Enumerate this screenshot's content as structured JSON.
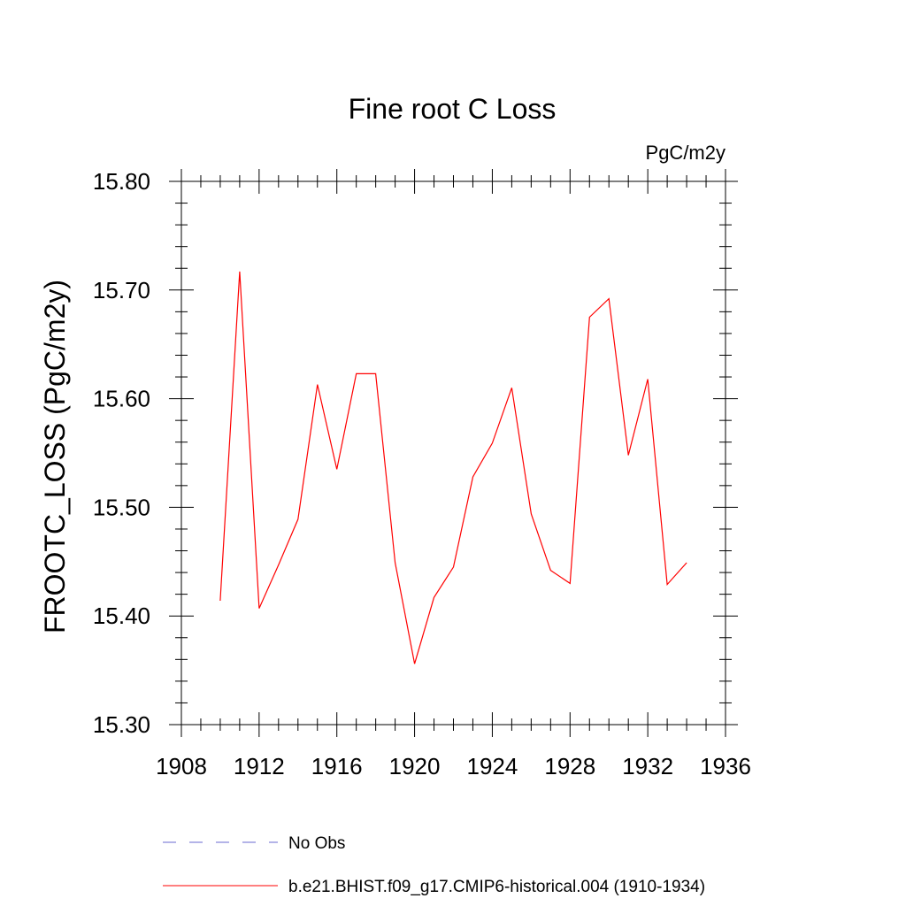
{
  "chart_data": {
    "type": "line",
    "title": "Fine root C Loss",
    "units_label": "PgC/m2y",
    "ylabel": "FROOTC_LOSS  (PgC/m2y)",
    "xlabel": "",
    "xlim": [
      1908,
      1936
    ],
    "ylim": [
      15.3,
      15.8
    ],
    "x_ticks": [
      1908,
      1912,
      1916,
      1920,
      1924,
      1928,
      1932,
      1936
    ],
    "x_tick_labels": [
      "1908",
      "1912",
      "1916",
      "1920",
      "1924",
      "1928",
      "1932",
      "1936"
    ],
    "y_ticks": [
      15.3,
      15.4,
      15.5,
      15.6,
      15.7,
      15.8
    ],
    "y_tick_labels": [
      "15.30",
      "15.40",
      "15.50",
      "15.60",
      "15.70",
      "15.80"
    ],
    "x_minor_step": 1,
    "y_minor_step": 0.02,
    "grid": false,
    "legend_position": "bottom",
    "series": [
      {
        "name": "b.e21.BHIST.f09_g17.CMIP6-historical.004 (1910-1934)",
        "color": "#ff0000",
        "style": "solid",
        "x": [
          1910,
          1911,
          1912,
          1913,
          1914,
          1915,
          1916,
          1917,
          1918,
          1919,
          1920,
          1921,
          1922,
          1923,
          1924,
          1925,
          1926,
          1927,
          1928,
          1929,
          1930,
          1931,
          1932,
          1933,
          1934
        ],
        "y": [
          15.414,
          15.717,
          15.407,
          15.447,
          15.489,
          15.613,
          15.535,
          15.623,
          15.623,
          15.449,
          15.356,
          15.417,
          15.445,
          15.528,
          15.559,
          15.61,
          15.494,
          15.442,
          15.43,
          15.675,
          15.692,
          15.548,
          15.618,
          15.429,
          15.449
        ]
      }
    ],
    "legend": [
      {
        "label": "No Obs",
        "color": "#6a6ad0",
        "style": "dashed"
      },
      {
        "label": "b.e21.BHIST.f09_g17.CMIP6-historical.004 (1910-1934)",
        "color": "#ff0000",
        "style": "solid"
      }
    ]
  }
}
